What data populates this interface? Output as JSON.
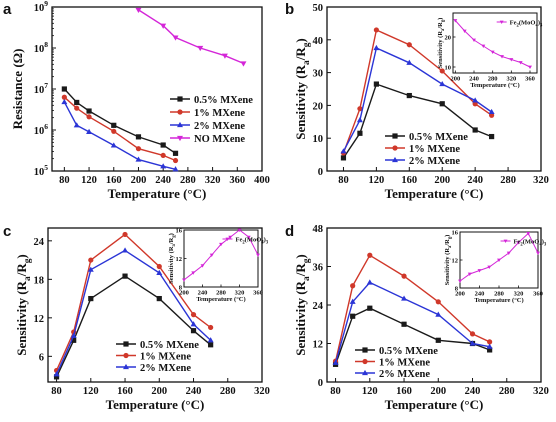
{
  "figure": {
    "colors": {
      "black": "#1a1a1a",
      "red": "#d0382a",
      "blue": "#2b35d6",
      "magenta": "#d426d8"
    }
  },
  "chart_data": [
    {
      "panel": "a",
      "type": "line",
      "ylabel": "Resistance (Ω)",
      "xlabel": "Temperature (°C)",
      "xlim": [
        60,
        400
      ],
      "xticks": [
        80,
        120,
        160,
        200,
        240,
        280,
        320,
        360,
        400
      ],
      "yscale": "log",
      "ylim": [
        100000,
        1000000000
      ],
      "ytick_labels": [
        "10^5",
        "10^6",
        "10^7",
        "10^8",
        "10^9"
      ],
      "legend_position": "middle-right",
      "series": [
        {
          "name": "0.5% MXene",
          "color": "#1a1a1a",
          "marker": "square",
          "x": [
            80,
            100,
            120,
            160,
            200,
            240,
            260
          ],
          "y": [
            10000000,
            4700000,
            2900000,
            1300000,
            680000,
            430000,
            270000
          ]
        },
        {
          "name": "1% MXene",
          "color": "#d0382a",
          "marker": "circle",
          "x": [
            80,
            100,
            120,
            160,
            200,
            240,
            260
          ],
          "y": [
            6300000,
            3400000,
            2100000,
            930000,
            350000,
            240000,
            180000
          ]
        },
        {
          "name": "2% MXene",
          "color": "#2b35d6",
          "marker": "triangle",
          "x": [
            80,
            100,
            120,
            160,
            200,
            240,
            260
          ],
          "y": [
            4800000,
            1300000,
            900000,
            420000,
            190000,
            130000,
            110000
          ]
        },
        {
          "name": "NO MXene",
          "color": "#d426d8",
          "marker": "triangle-down",
          "x": [
            200,
            240,
            260,
            300,
            340,
            370
          ],
          "y": [
            850000000,
            350000000,
            180000000,
            100000000,
            65000000,
            42000000
          ]
        }
      ]
    },
    {
      "panel": "b",
      "type": "line",
      "ylabel": "Sensitivity (Ra/Rg)",
      "xlabel": "Temperature (°C)",
      "xlim": [
        60,
        320
      ],
      "xticks": [
        80,
        120,
        160,
        200,
        240,
        280,
        320
      ],
      "ylim": [
        0,
        50
      ],
      "yticks": [
        0,
        10,
        20,
        30,
        40,
        50
      ],
      "legend_position": "bottom-center",
      "series": [
        {
          "name": "0.5% MXene",
          "color": "#1a1a1a",
          "marker": "square",
          "x": [
            80,
            100,
            120,
            160,
            200,
            240,
            260
          ],
          "y": [
            4,
            11.5,
            26.5,
            23,
            20.5,
            12.5,
            10.5
          ]
        },
        {
          "name": "1% MXene",
          "color": "#d0382a",
          "marker": "circle",
          "x": [
            80,
            100,
            120,
            160,
            200,
            240,
            260
          ],
          "y": [
            5.5,
            19,
            43,
            38.5,
            30.5,
            20.5,
            17
          ]
        },
        {
          "name": "2% MXene",
          "color": "#2b35d6",
          "marker": "triangle",
          "x": [
            80,
            100,
            120,
            160,
            200,
            240,
            260
          ],
          "y": [
            6,
            15.5,
            37.5,
            33,
            26.5,
            21.5,
            18
          ]
        }
      ],
      "inset": {
        "ylabel": "Sensitivity (Ra/Rg)",
        "xlabel": "Temperature (°C)",
        "xlim": [
          195,
          375
        ],
        "xticks": [
          200,
          240,
          280,
          320,
          360
        ],
        "ylim": [
          8,
          28
        ],
        "yticks": [
          10,
          20
        ],
        "legend": "Fe2(MoO4)3",
        "color": "#d426d8",
        "marker": "triangle-down",
        "x": [
          200,
          220,
          240,
          260,
          280,
          300,
          320,
          340,
          360
        ],
        "y": [
          25.5,
          22,
          19,
          17,
          15,
          13.5,
          12.5,
          11.5,
          10
        ]
      }
    },
    {
      "panel": "c",
      "type": "line",
      "ylabel": "Sensitivity (Ra/Rg)",
      "xlabel": "Temperature (°C)",
      "xlim": [
        70,
        320
      ],
      "xticks": [
        80,
        120,
        160,
        200,
        240,
        280,
        320
      ],
      "ylim": [
        2,
        26
      ],
      "yticks": [
        6,
        12,
        18,
        24
      ],
      "legend_position": "bottom-center",
      "series": [
        {
          "name": "0.5% MXene",
          "color": "#1a1a1a",
          "marker": "square",
          "x": [
            80,
            100,
            120,
            160,
            200,
            240,
            260
          ],
          "y": [
            2.8,
            8.5,
            15,
            18.5,
            15,
            10,
            7.8
          ]
        },
        {
          "name": "1% MXene",
          "color": "#d0382a",
          "marker": "circle",
          "x": [
            80,
            100,
            120,
            160,
            200,
            240,
            260
          ],
          "y": [
            3.8,
            9.8,
            21,
            25,
            20,
            12.5,
            10.5
          ]
        },
        {
          "name": "2% MXene",
          "color": "#2b35d6",
          "marker": "triangle",
          "x": [
            80,
            100,
            120,
            160,
            200,
            240,
            260
          ],
          "y": [
            3.2,
            9.2,
            19.5,
            22.5,
            19,
            11,
            8.5
          ]
        }
      ],
      "inset": {
        "ylabel": "Sensitivity (Ra/Rg)",
        "xlabel": "Temperature (°C)",
        "xlim": [
          200,
          360
        ],
        "xticks": [
          200,
          240,
          280,
          320,
          360
        ],
        "ylim": [
          8,
          16
        ],
        "yticks": [
          8,
          12,
          16
        ],
        "legend": "Fe2(MoO4)3",
        "color": "#d426d8",
        "marker": "triangle-down",
        "x": [
          200,
          220,
          240,
          260,
          280,
          300,
          320,
          340,
          360
        ],
        "y": [
          9,
          10,
          11,
          12.5,
          14,
          15,
          16,
          15,
          12.5
        ]
      }
    },
    {
      "panel": "d",
      "type": "line",
      "ylabel": "Sensitivity (Ra/Rg)",
      "xlabel": "Temperature (°C)",
      "xlim": [
        70,
        320
      ],
      "xticks": [
        80,
        120,
        160,
        200,
        240,
        280,
        320
      ],
      "ylim": [
        0,
        48
      ],
      "yticks": [
        0,
        12,
        24,
        36,
        48
      ],
      "legend_position": "bottom-center",
      "series": [
        {
          "name": "0.5% MXene",
          "color": "#1a1a1a",
          "marker": "square",
          "x": [
            80,
            100,
            120,
            160,
            200,
            240,
            260
          ],
          "y": [
            5.5,
            20.5,
            23,
            18,
            13,
            12,
            10
          ]
        },
        {
          "name": "1% MXene",
          "color": "#d0382a",
          "marker": "circle",
          "x": [
            80,
            100,
            120,
            160,
            200,
            240,
            260
          ],
          "y": [
            6.5,
            30,
            39.5,
            33,
            25,
            15,
            12.5
          ]
        },
        {
          "name": "2% MXene",
          "color": "#2b35d6",
          "marker": "triangle",
          "x": [
            80,
            100,
            120,
            160,
            200,
            240,
            260
          ],
          "y": [
            6,
            25,
            31,
            26,
            21,
            12,
            11
          ]
        }
      ],
      "inset": {
        "ylabel": "Sensitivity (Ra/Rg)",
        "xlabel": "Temperature (°C)",
        "xlim": [
          200,
          360
        ],
        "xticks": [
          200,
          240,
          280,
          320,
          360
        ],
        "ylim": [
          8,
          16
        ],
        "yticks": [
          8,
          12,
          16
        ],
        "legend": "Fe2(MoO4)3",
        "color": "#d426d8",
        "marker": "triangle-down",
        "x": [
          200,
          220,
          240,
          260,
          280,
          300,
          320,
          340,
          360
        ],
        "y": [
          9,
          10,
          10.5,
          11,
          12,
          13,
          14.5,
          15.8,
          13
        ]
      }
    }
  ]
}
